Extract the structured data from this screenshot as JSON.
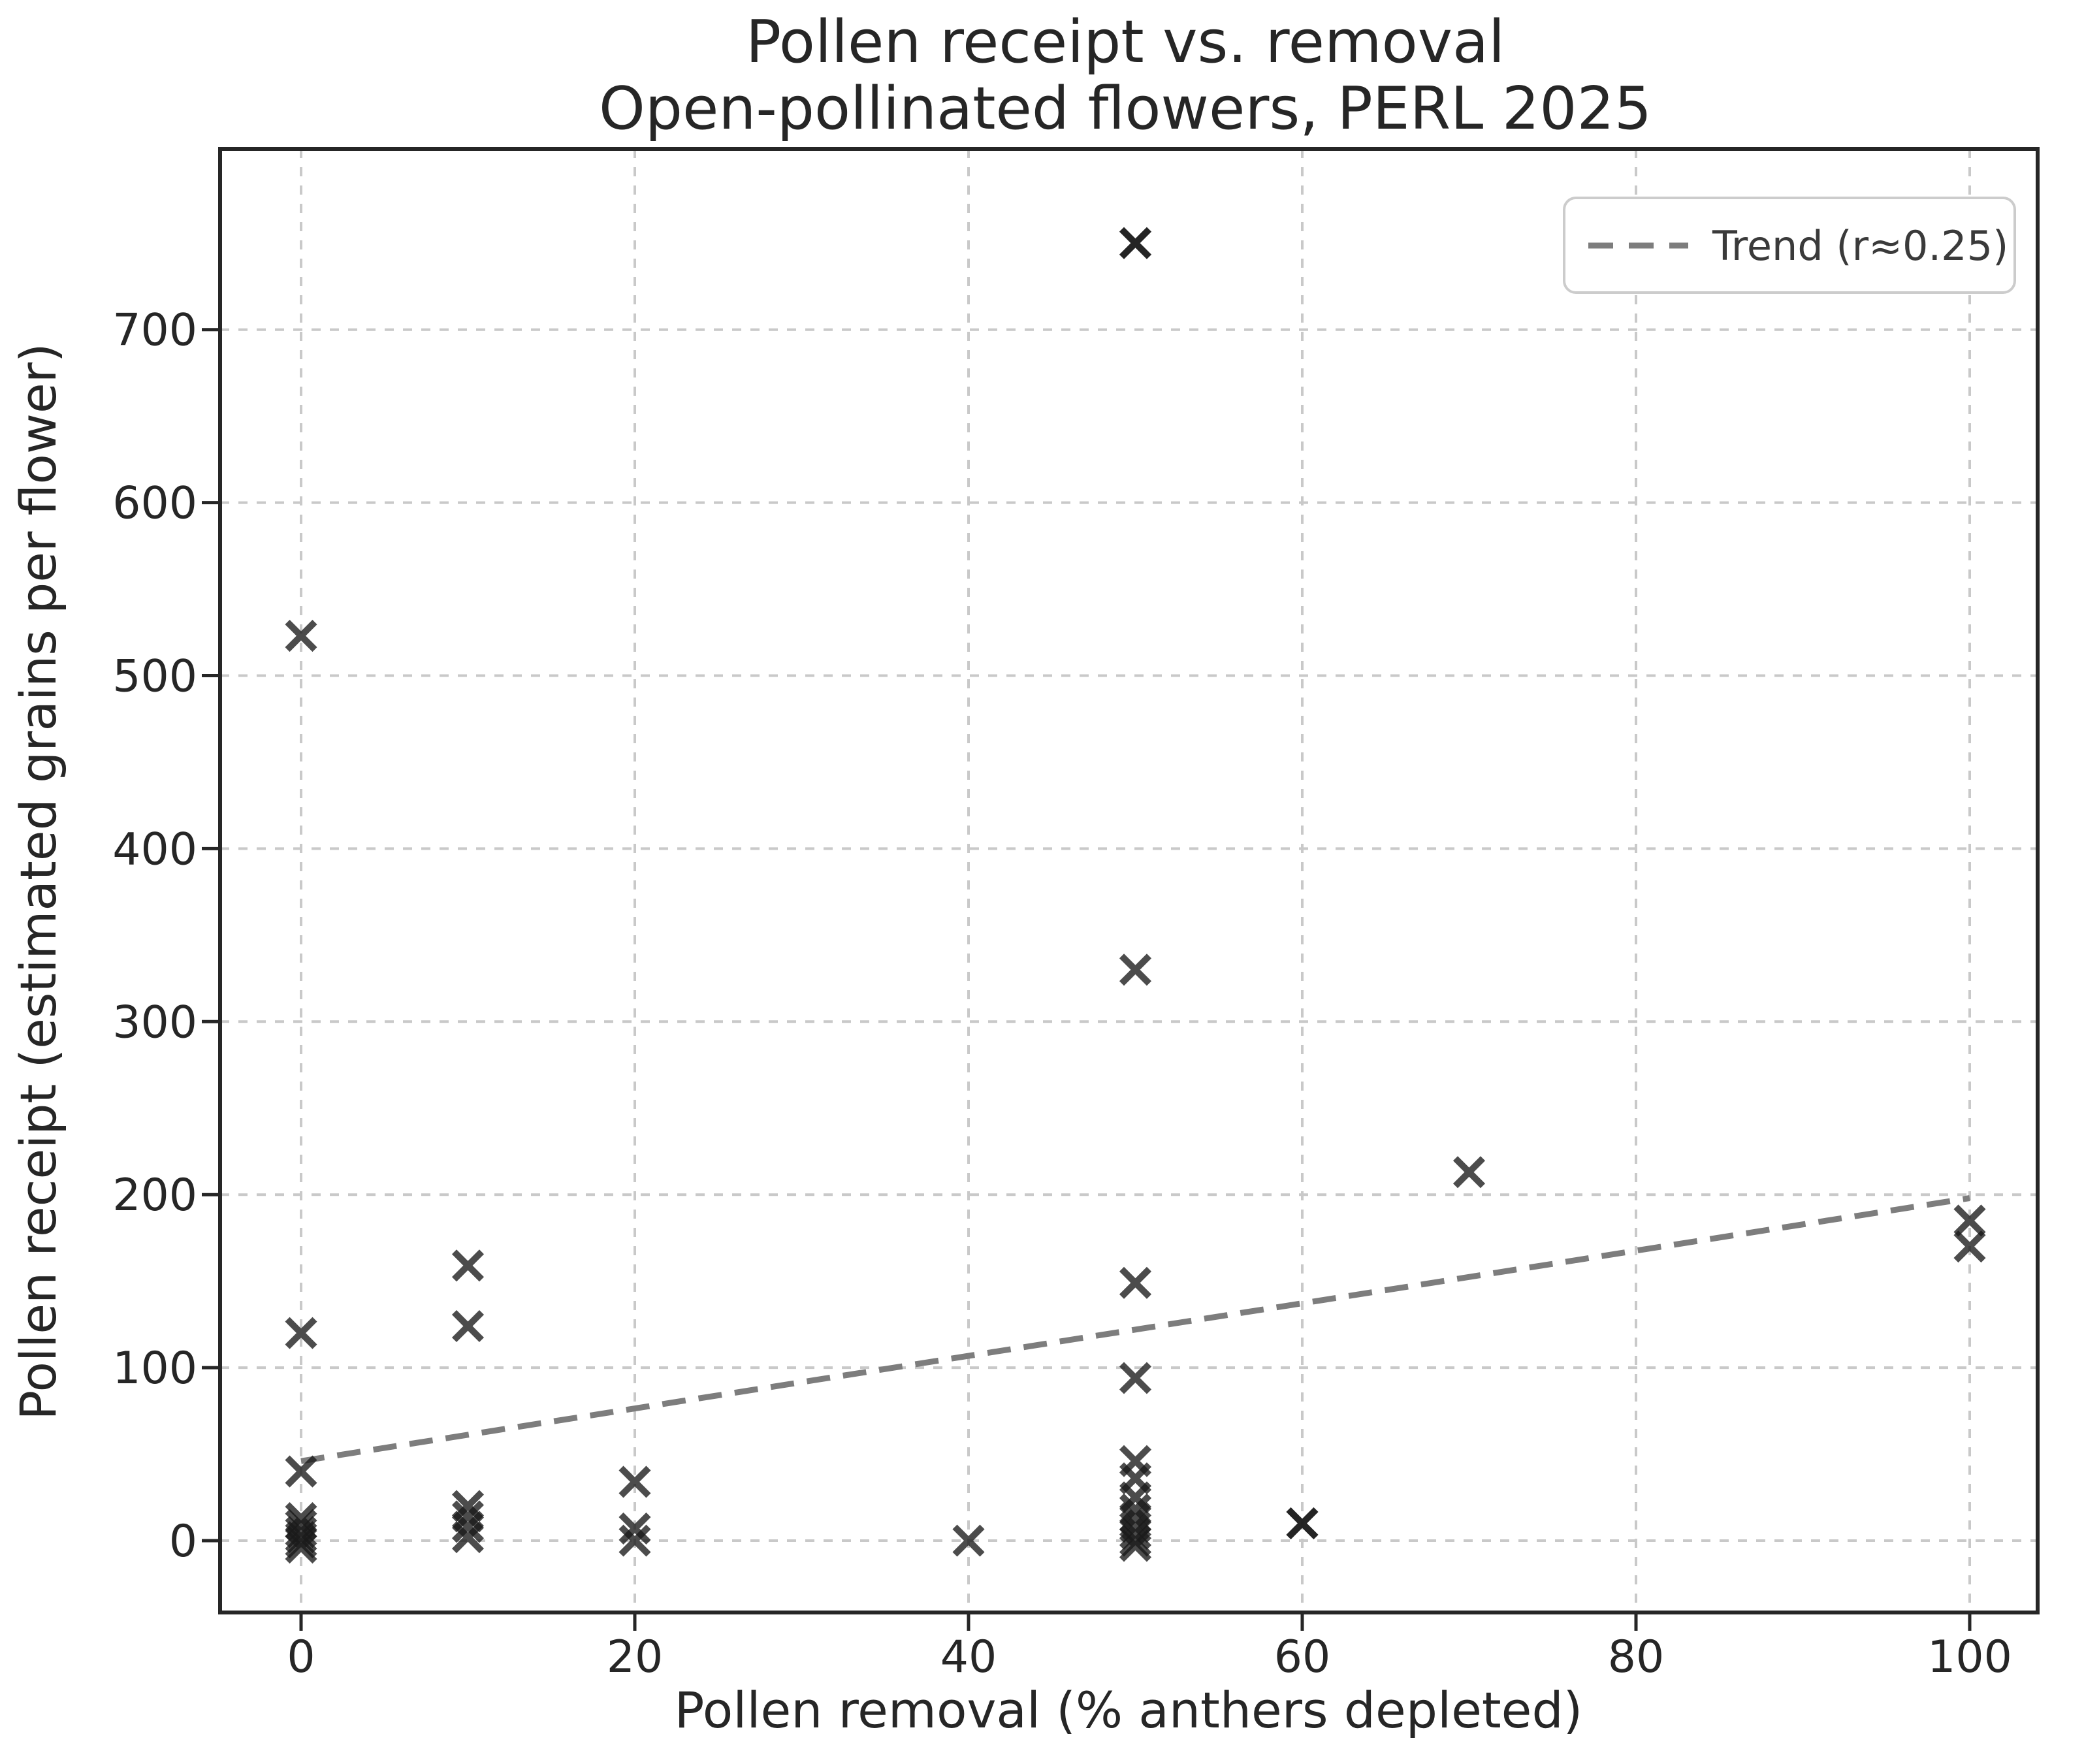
{
  "page": {
    "background": "#ffffff"
  },
  "chart_data": {
    "type": "scatter",
    "title_line1": "Pollen receipt vs. removal",
    "title_line2": "Open-pollinated flowers, PERL 2025",
    "xlabel": "Pollen removal (% anthers depleted)",
    "ylabel": "Pollen receipt (estimated grains per flower)",
    "x_ticks": [
      0,
      20,
      40,
      60,
      80,
      100
    ],
    "y_ticks": [
      0,
      100,
      200,
      300,
      400,
      500,
      600,
      700
    ],
    "xlim": [
      -5,
      105
    ],
    "ylim": [
      -42,
      805
    ],
    "grid": true,
    "marker": "x",
    "points": [
      [
        0,
        523
      ],
      [
        0,
        120
      ],
      [
        0,
        40
      ],
      [
        0,
        13
      ],
      [
        0,
        9
      ],
      [
        0,
        5
      ],
      [
        0,
        2
      ],
      [
        0,
        -1
      ],
      [
        0,
        -4
      ],
      [
        10,
        159
      ],
      [
        10,
        124
      ],
      [
        10,
        20
      ],
      [
        10,
        14
      ],
      [
        10,
        8
      ],
      [
        10,
        2
      ],
      [
        20,
        34
      ],
      [
        20,
        7
      ],
      [
        20,
        0
      ],
      [
        40,
        0
      ],
      [
        50,
        750
      ],
      [
        50,
        750
      ],
      [
        50,
        330
      ],
      [
        50,
        149
      ],
      [
        50,
        94
      ],
      [
        50,
        46
      ],
      [
        50,
        36
      ],
      [
        50,
        25
      ],
      [
        50,
        18
      ],
      [
        50,
        13
      ],
      [
        50,
        8
      ],
      [
        50,
        4
      ],
      [
        50,
        0
      ],
      [
        50,
        -3
      ],
      [
        60,
        10
      ],
      [
        60,
        10
      ],
      [
        70,
        213
      ],
      [
        100,
        185
      ],
      [
        100,
        170
      ]
    ],
    "trend": {
      "x": [
        0,
        100
      ],
      "y": [
        46,
        198
      ],
      "r": "0.25"
    },
    "legend": {
      "position": "upper right",
      "label": "Trend (r≈0.25)",
      "line_style": "dashed"
    },
    "colors": {
      "marker": "#1a1a1a",
      "marker_opacity": 0.78,
      "trend": "#7d7d7d",
      "grid": "#c9c9c9",
      "spine": "#262626",
      "text": "#262626",
      "legend_border": "#cccccc",
      "background": "#ffffff"
    }
  }
}
